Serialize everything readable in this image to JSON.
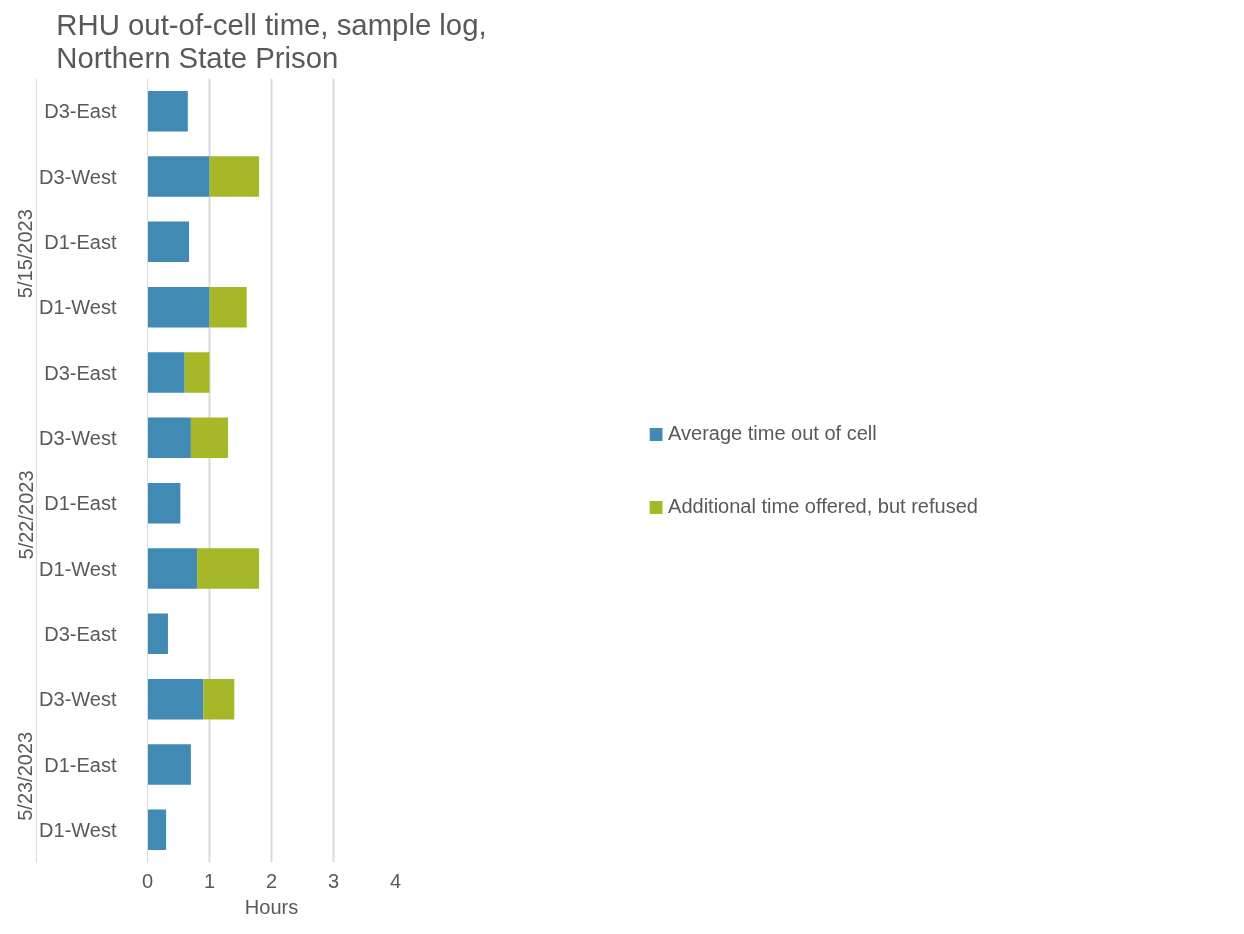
{
  "chart_data": {
    "type": "bar",
    "orientation": "horizontal",
    "stacked": true,
    "title": "RHU out-of-cell time, sample log, Northern State Prison",
    "xlabel": "Hours",
    "categories": [
      "D3-East",
      "D3-West",
      "D1-East",
      "D1-West",
      "D3-East",
      "D3-West",
      "D1-East",
      "D1-West",
      "D3-East",
      "D3-West",
      "D1-East",
      "D1-West"
    ],
    "annotations": [
      "5/15/2023",
      "5/22/2023",
      "5/23/2023"
    ],
    "series": [
      {
        "name": "Average time out of cell",
        "color": "#418ab3",
        "values": [
          0.65,
          1.0,
          0.67,
          1.0,
          0.6,
          0.7,
          0.53,
          0.8,
          0.33,
          0.9,
          0.7,
          0.3
        ]
      },
      {
        "name": "Additional time offered, but refused",
        "color": "#a6b727",
        "values": [
          null,
          0.8,
          null,
          0.6,
          0.4,
          0.6,
          null,
          1.0,
          null,
          0.5,
          null,
          null
        ]
      }
    ],
    "xlim": [
      0,
      4
    ],
    "xticks": [
      0,
      1,
      2,
      3,
      4
    ],
    "grid": "x",
    "legend": "right"
  }
}
